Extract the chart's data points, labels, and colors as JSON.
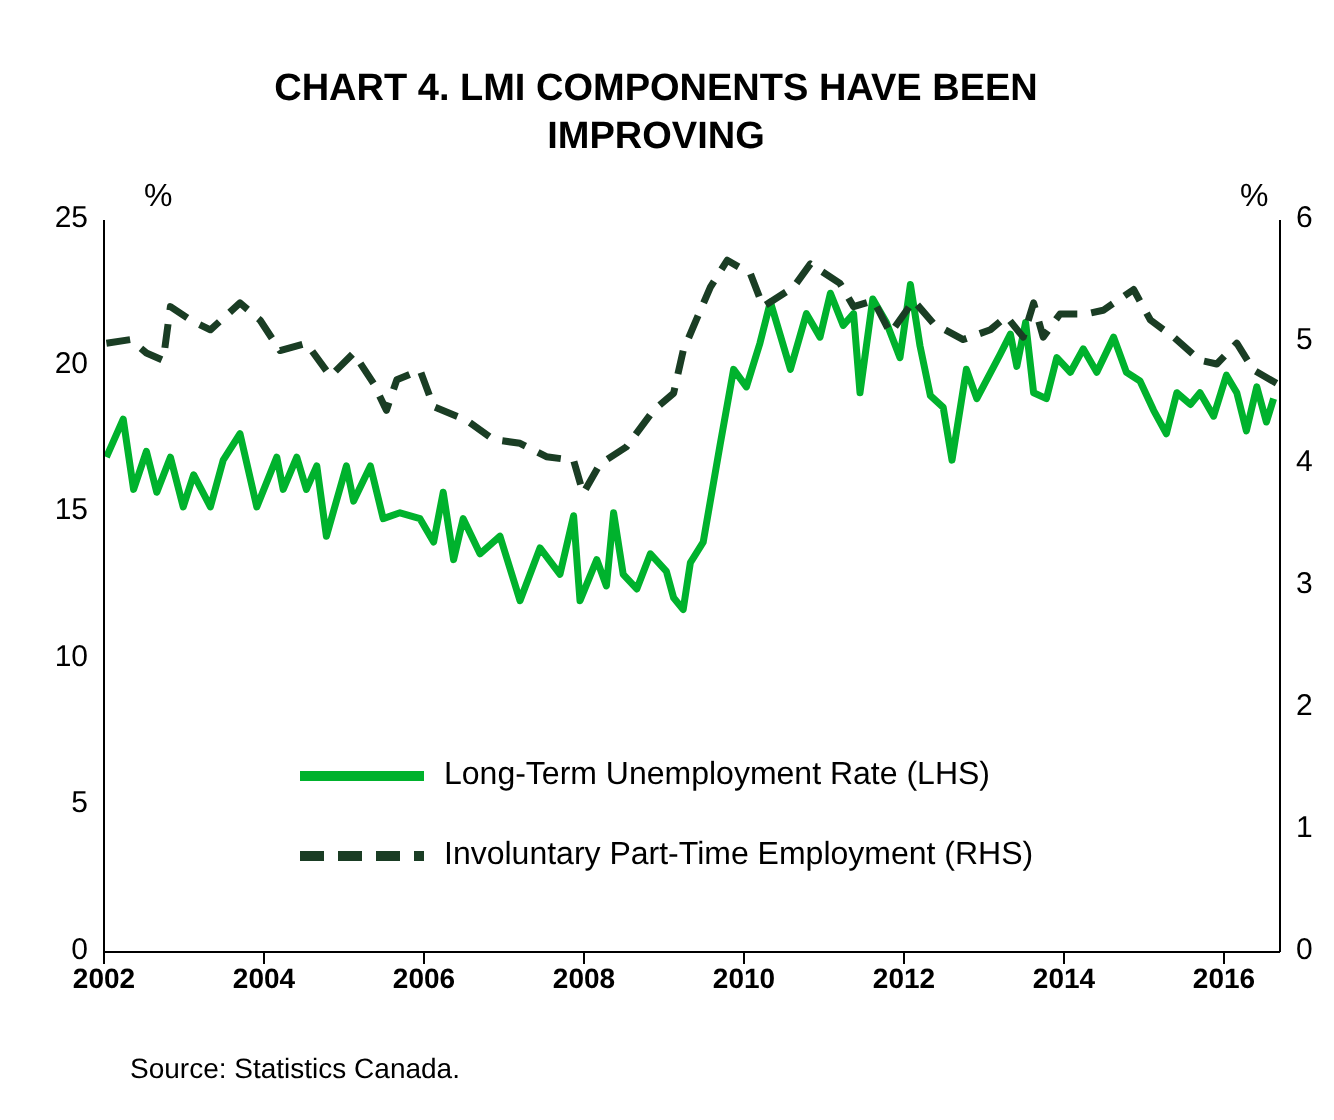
{
  "chart_data": {
    "type": "line",
    "title": "CHART 4. LMI COMPONENTS HAVE BEEN IMPROVING",
    "ylabel": "%",
    "y2label": "%",
    "annotations": [
      "Source: Statistics Canada."
    ],
    "xlim": [
      2002,
      2016.7
    ],
    "xticks": [
      2002,
      2004,
      2006,
      2008,
      2010,
      2012,
      2014,
      2016
    ],
    "ylim": [
      0,
      25
    ],
    "yticks": [
      0,
      5,
      10,
      15,
      20,
      25
    ],
    "y2lim": [
      0,
      6
    ],
    "y2ticks": [
      0,
      1,
      2,
      3,
      4,
      5,
      6
    ],
    "grid": false,
    "legend": "bottom",
    "marker": "none",
    "series": [
      {
        "name": "Long-Term Unemployment Rate (LHS)",
        "color": "#00b22d",
        "line_style": "solid",
        "x": [
          2002.03,
          2002.24,
          2002.37,
          2002.53,
          2002.66,
          2002.83,
          2002.99,
          2003.12,
          2003.33,
          2003.49,
          2003.7,
          2003.91,
          2004.16,
          2004.24,
          2004.41,
          2004.53,
          2004.66,
          2004.78,
          2005.03,
          2005.12,
          2005.33,
          2005.49,
          2005.7,
          2005.95,
          2006.12,
          2006.24,
          2006.37,
          2006.49,
          2006.7,
          2006.95,
          2007.2,
          2007.45,
          2007.7,
          2007.87,
          2007.95,
          2008.16,
          2008.28,
          2008.37,
          2008.49,
          2008.66,
          2008.83,
          2009.03,
          2009.12,
          2009.24,
          2009.33,
          2009.49,
          2009.7,
          2009.87,
          2010.03,
          2010.2,
          2010.33,
          2010.58,
          2010.78,
          2010.95,
          2011.08,
          2011.24,
          2011.37,
          2011.45,
          2011.61,
          2011.78,
          2011.95,
          2012.08,
          2012.2,
          2012.33,
          2012.49,
          2012.6,
          2012.78,
          2012.91,
          2013.2,
          2013.33,
          2013.41,
          2013.52,
          2013.62,
          2013.78,
          2013.91,
          2014.08,
          2014.24,
          2014.41,
          2014.62,
          2014.78,
          2014.95,
          2015.12,
          2015.28,
          2015.41,
          2015.58,
          2015.7,
          2015.87,
          2016.03,
          2016.16,
          2016.28,
          2016.41,
          2016.53,
          2016.62
        ],
        "values": [
          16.9,
          18.2,
          15.8,
          17.1,
          15.7,
          16.9,
          15.2,
          16.3,
          15.2,
          16.8,
          17.7,
          15.2,
          16.9,
          15.8,
          16.9,
          15.8,
          16.6,
          14.2,
          16.6,
          15.4,
          16.6,
          14.8,
          15.0,
          14.8,
          14.0,
          15.7,
          13.4,
          14.8,
          13.6,
          14.2,
          12.0,
          13.8,
          12.9,
          14.9,
          12.0,
          13.4,
          12.5,
          15.0,
          12.9,
          12.4,
          13.6,
          13.0,
          12.1,
          11.7,
          13.3,
          14.0,
          17.3,
          19.9,
          19.3,
          20.8,
          22.2,
          19.9,
          21.8,
          21.0,
          22.5,
          21.4,
          21.8,
          19.1,
          22.3,
          21.5,
          20.3,
          22.8,
          20.7,
          19.0,
          18.6,
          16.8,
          19.9,
          18.9,
          20.4,
          21.1,
          20.0,
          21.5,
          19.1,
          18.9,
          20.3,
          19.8,
          20.6,
          19.8,
          21.0,
          19.8,
          19.5,
          18.5,
          17.7,
          19.1,
          18.7,
          19.1,
          18.3,
          19.7,
          19.1,
          17.8,
          19.3,
          18.1,
          18.9
        ]
      },
      {
        "name": "Involuntary Part-Time Employment (RHS)",
        "color": "#1a3d24",
        "line_style": "dashed",
        "axis": "y2",
        "x": [
          2002.03,
          2002.33,
          2002.53,
          2002.74,
          2002.83,
          2003.08,
          2003.33,
          2003.7,
          2003.95,
          2004.2,
          2004.53,
          2004.83,
          2005.12,
          2005.37,
          2005.53,
          2005.66,
          2005.95,
          2006.12,
          2006.53,
          2006.87,
          2007.2,
          2007.53,
          2007.87,
          2007.99,
          2008.2,
          2008.53,
          2008.87,
          2009.12,
          2009.24,
          2009.37,
          2009.58,
          2009.79,
          2010.08,
          2010.24,
          2010.62,
          2010.83,
          2011.2,
          2011.37,
          2011.62,
          2011.83,
          2012.12,
          2012.37,
          2012.74,
          2013.08,
          2013.28,
          2013.49,
          2013.62,
          2013.74,
          2013.95,
          2014.28,
          2014.49,
          2014.87,
          2015.08,
          2015.37,
          2015.7,
          2015.91,
          2016.16,
          2016.37,
          2016.66
        ],
        "values": [
          4.99,
          5.02,
          4.91,
          4.85,
          5.29,
          5.18,
          5.1,
          5.32,
          5.18,
          4.93,
          4.99,
          4.72,
          4.91,
          4.66,
          4.44,
          4.69,
          4.77,
          4.47,
          4.36,
          4.2,
          4.17,
          4.06,
          4.03,
          3.76,
          4.0,
          4.14,
          4.44,
          4.58,
          4.93,
          5.13,
          5.45,
          5.67,
          5.56,
          5.29,
          5.45,
          5.64,
          5.48,
          5.29,
          5.34,
          5.07,
          5.34,
          5.15,
          5.02,
          5.1,
          5.21,
          5.04,
          5.32,
          5.04,
          5.23,
          5.23,
          5.26,
          5.43,
          5.18,
          5.04,
          4.85,
          4.82,
          4.99,
          4.77,
          4.66
        ]
      }
    ]
  }
}
